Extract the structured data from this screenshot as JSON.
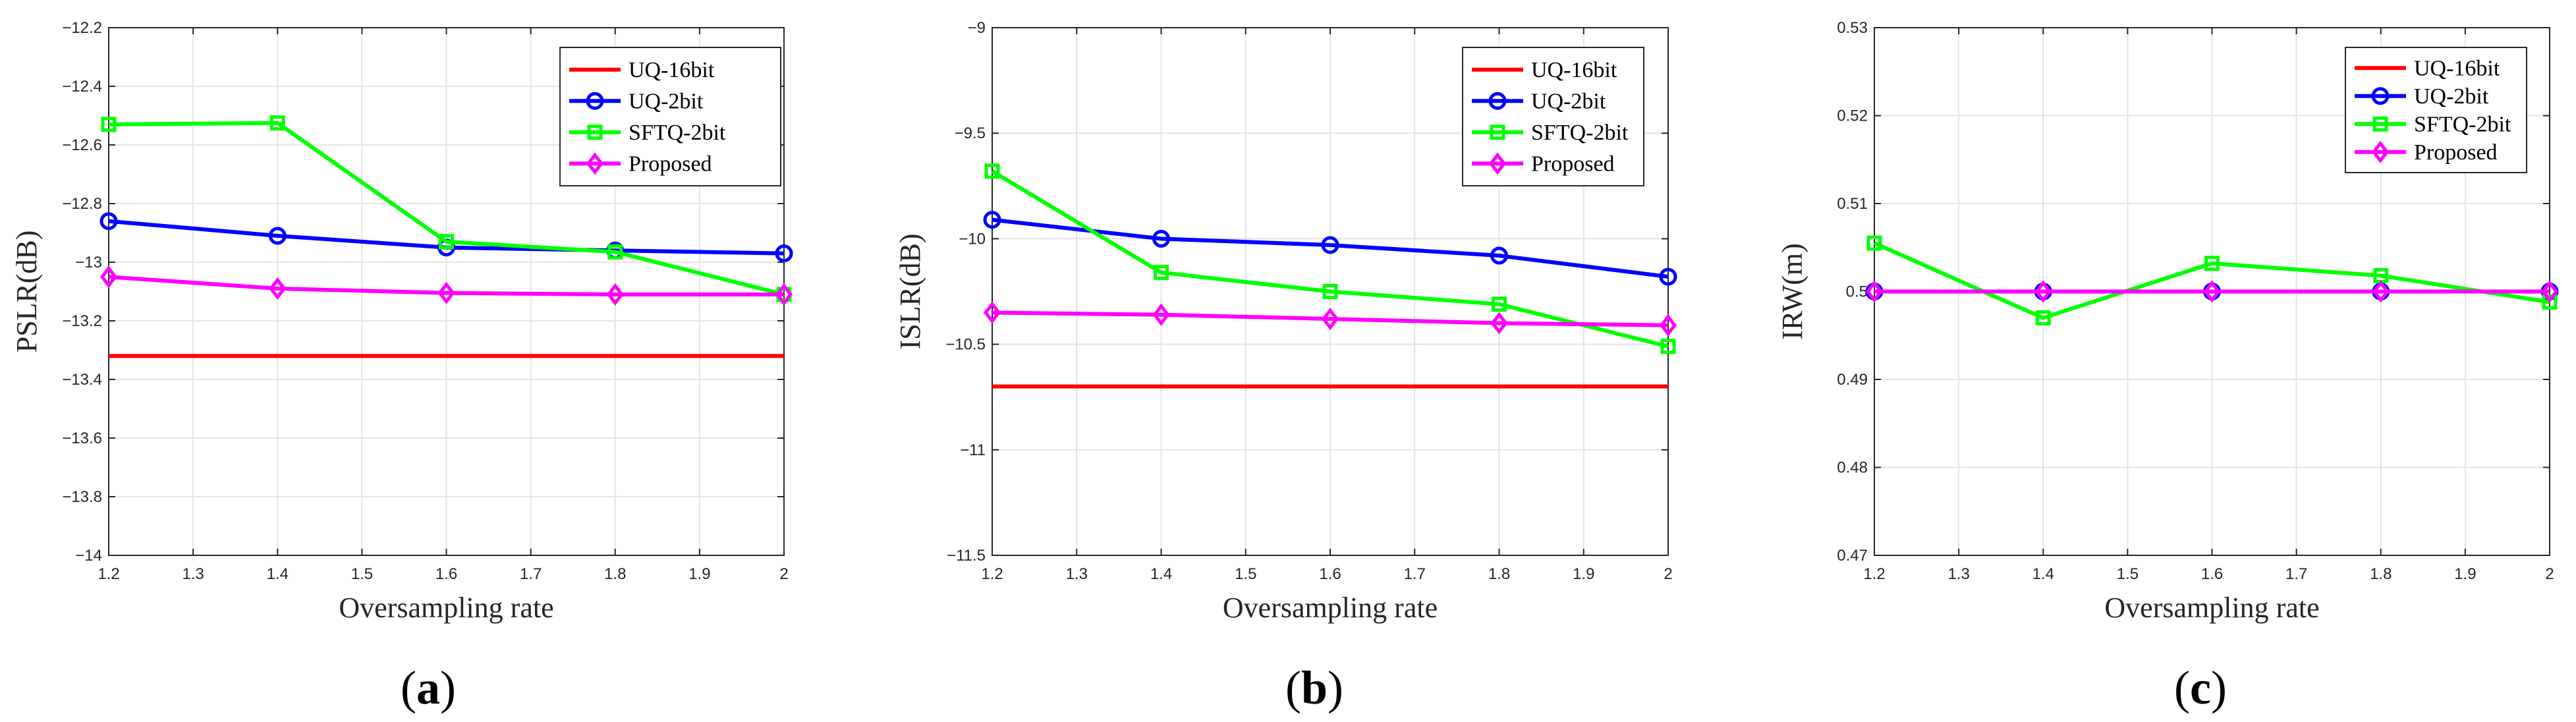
{
  "chart_data": [
    {
      "type": "line",
      "panel": "a",
      "caption": "(a)",
      "caption_open": "(",
      "caption_letter": "a",
      "caption_close": ")",
      "xlabel": "Oversampling rate",
      "ylabel": "PSLR(dB)",
      "xlim": [
        1.2,
        2
      ],
      "ylim": [
        -14,
        -12.2
      ],
      "xticks": [
        1.2,
        1.3,
        1.4,
        1.5,
        1.6,
        1.7,
        1.8,
        1.9,
        2
      ],
      "xtick_labels": [
        "1.2",
        "1.3",
        "1.4",
        "1.5",
        "1.6",
        "1.7",
        "1.8",
        "1.9",
        "2"
      ],
      "yticks": [
        -14,
        -13.8,
        -13.6,
        -13.4,
        -13.2,
        -13,
        -12.8,
        -12.6,
        -12.4,
        -12.2
      ],
      "ytick_labels": [
        "−14",
        "−13.8",
        "−13.6",
        "−13.4",
        "−13.2",
        "−13",
        "−12.8",
        "−12.6",
        "−12.4",
        "−12.2"
      ],
      "grid": true,
      "legend_position": "top-right",
      "x": [
        1.2,
        1.4,
        1.6,
        1.8,
        2.0
      ],
      "series": [
        {
          "name": "UQ-16bit",
          "color": "#ff0000",
          "marker": "none",
          "values": [
            -13.32,
            -13.32,
            -13.32,
            -13.32,
            -13.32
          ]
        },
        {
          "name": "UQ-2bit",
          "color": "#0000ff",
          "marker": "circle",
          "values": [
            -12.86,
            -12.91,
            -12.95,
            -12.96,
            -12.97
          ]
        },
        {
          "name": "SFTQ-2bit",
          "color": "#00ff00",
          "marker": "square",
          "values": [
            -12.53,
            -12.525,
            -12.93,
            -12.965,
            -13.11
          ]
        },
        {
          "name": "Proposed",
          "color": "#ff00ff",
          "marker": "diamond",
          "values": [
            -13.05,
            -13.09,
            -13.105,
            -13.11,
            -13.11
          ]
        }
      ]
    },
    {
      "type": "line",
      "panel": "b",
      "caption": "(b)",
      "caption_open": "(",
      "caption_letter": "b",
      "caption_close": ")",
      "xlabel": "Oversampling rate",
      "ylabel": "ISLR(dB)",
      "xlim": [
        1.2,
        2
      ],
      "ylim": [
        -11.5,
        -9
      ],
      "xticks": [
        1.2,
        1.3,
        1.4,
        1.5,
        1.6,
        1.7,
        1.8,
        1.9,
        2
      ],
      "xtick_labels": [
        "1.2",
        "1.3",
        "1.4",
        "1.5",
        "1.6",
        "1.7",
        "1.8",
        "1.9",
        "2"
      ],
      "yticks": [
        -11.5,
        -11,
        -10.5,
        -10,
        -9.5,
        -9
      ],
      "ytick_labels": [
        "−11.5",
        "−11",
        "−10.5",
        "−10",
        "−9.5",
        "−9"
      ],
      "grid": true,
      "legend_position": "top-right",
      "x": [
        1.2,
        1.4,
        1.6,
        1.8,
        2.0
      ],
      "series": [
        {
          "name": "UQ-16bit",
          "color": "#ff0000",
          "marker": "none",
          "values": [
            -10.7,
            -10.7,
            -10.7,
            -10.7,
            -10.7
          ]
        },
        {
          "name": "UQ-2bit",
          "color": "#0000ff",
          "marker": "circle",
          "values": [
            -9.91,
            -10.0,
            -10.03,
            -10.08,
            -10.18
          ]
        },
        {
          "name": "SFTQ-2bit",
          "color": "#00ff00",
          "marker": "square",
          "values": [
            -9.68,
            -10.16,
            -10.25,
            -10.31,
            -10.51
          ]
        },
        {
          "name": "Proposed",
          "color": "#ff00ff",
          "marker": "diamond",
          "values": [
            -10.35,
            -10.36,
            -10.38,
            -10.4,
            -10.41
          ]
        }
      ]
    },
    {
      "type": "line",
      "panel": "c",
      "caption": "(c)",
      "caption_open": "(",
      "caption_letter": "c",
      "caption_close": ")",
      "xlabel": "Oversampling rate",
      "ylabel": "IRW(m)",
      "xlim": [
        1.2,
        2
      ],
      "ylim": [
        0.47,
        0.53
      ],
      "xticks": [
        1.2,
        1.3,
        1.4,
        1.5,
        1.6,
        1.7,
        1.8,
        1.9,
        2
      ],
      "xtick_labels": [
        "1.2",
        "1.3",
        "1.4",
        "1.5",
        "1.6",
        "1.7",
        "1.8",
        "1.9",
        "2"
      ],
      "yticks": [
        0.47,
        0.48,
        0.49,
        0.5,
        0.51,
        0.52,
        0.53
      ],
      "ytick_labels": [
        "0.47",
        "0.48",
        "0.49",
        "0.5",
        "0.51",
        "0.52",
        "0.53"
      ],
      "grid": true,
      "legend_position": "top-right",
      "x": [
        1.2,
        1.4,
        1.6,
        1.8,
        2.0
      ],
      "series": [
        {
          "name": "UQ-16bit",
          "color": "#ff0000",
          "marker": "none",
          "values": [
            0.5,
            0.5,
            0.5,
            0.5,
            0.5
          ]
        },
        {
          "name": "UQ-2bit",
          "color": "#0000ff",
          "marker": "circle",
          "values": [
            0.5,
            0.5,
            0.5,
            0.5,
            0.5
          ]
        },
        {
          "name": "SFTQ-2bit",
          "color": "#00ff00",
          "marker": "square",
          "values": [
            0.5055,
            0.497,
            0.5032,
            0.5018,
            0.4988
          ]
        },
        {
          "name": "Proposed",
          "color": "#ff00ff",
          "marker": "diamond",
          "values": [
            0.5,
            0.5,
            0.5,
            0.5,
            0.5
          ]
        }
      ]
    }
  ]
}
